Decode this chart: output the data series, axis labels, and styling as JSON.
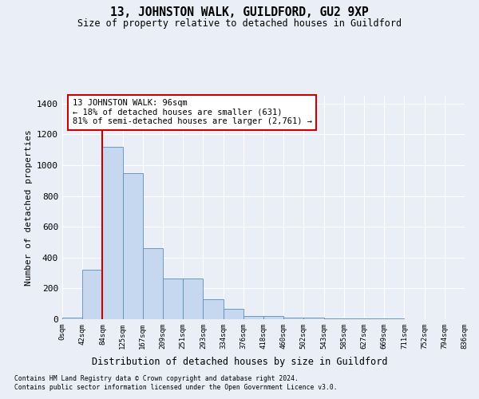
{
  "title": "13, JOHNSTON WALK, GUILDFORD, GU2 9XP",
  "subtitle": "Size of property relative to detached houses in Guildford",
  "xlabel": "Distribution of detached houses by size in Guildford",
  "ylabel": "Number of detached properties",
  "bin_labels": [
    "0sqm",
    "42sqm",
    "84sqm",
    "125sqm",
    "167sqm",
    "209sqm",
    "251sqm",
    "293sqm",
    "334sqm",
    "376sqm",
    "418sqm",
    "460sqm",
    "502sqm",
    "543sqm",
    "585sqm",
    "627sqm",
    "669sqm",
    "711sqm",
    "752sqm",
    "794sqm",
    "836sqm"
  ],
  "bar_heights": [
    10,
    320,
    1120,
    950,
    460,
    265,
    265,
    130,
    65,
    20,
    20,
    10,
    10,
    5,
    5,
    3,
    3,
    2,
    1,
    0
  ],
  "bar_color": "#c5d8ef",
  "bar_edge_color": "#5b8db8",
  "red_line_bin_index": 2,
  "annotation_text": "13 JOHNSTON WALK: 96sqm\n← 18% of detached houses are smaller (631)\n81% of semi-detached houses are larger (2,761) →",
  "ylim": [
    0,
    1450
  ],
  "yticks": [
    0,
    200,
    400,
    600,
    800,
    1000,
    1200,
    1400
  ],
  "footer_line1": "Contains HM Land Registry data © Crown copyright and database right 2024.",
  "footer_line2": "Contains public sector information licensed under the Open Government Licence v3.0.",
  "background_color": "#eaeef7",
  "grid_color": "#ffffff"
}
